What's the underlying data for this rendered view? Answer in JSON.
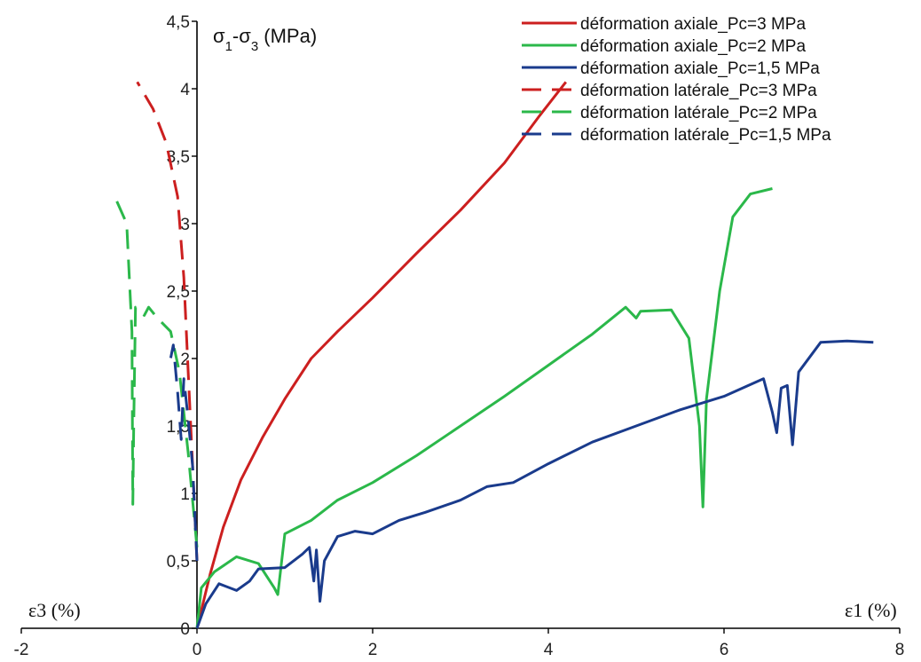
{
  "chart_data": {
    "type": "line",
    "title": "",
    "xlabel_left": "ε3 (%)",
    "xlabel_right": "ε1 (%)",
    "ylabel": "σ1-σ3 (MPa)",
    "xlim": [
      -2,
      8
    ],
    "ylim": [
      0,
      4.5
    ],
    "x_ticks": [
      "-2",
      "0",
      "2",
      "4",
      "6",
      "8"
    ],
    "y_ticks": [
      "0",
      "0,5",
      "1",
      "1,5",
      "2",
      "2,5",
      "3",
      "3,5",
      "4",
      "4,5"
    ],
    "grid": false,
    "legend_position": "top-right",
    "series": [
      {
        "name": "déformation axiale_Pc=3 MPa",
        "color": "#cc1f1f",
        "dash": "solid",
        "points": [
          [
            0,
            0
          ],
          [
            0.15,
            0.4
          ],
          [
            0.3,
            0.75
          ],
          [
            0.5,
            1.1
          ],
          [
            0.75,
            1.42
          ],
          [
            1.0,
            1.7
          ],
          [
            1.3,
            2.0
          ],
          [
            1.6,
            2.2
          ],
          [
            2.0,
            2.45
          ],
          [
            2.5,
            2.78
          ],
          [
            3.0,
            3.1
          ],
          [
            3.5,
            3.45
          ],
          [
            3.9,
            3.8
          ],
          [
            4.2,
            4.05
          ]
        ]
      },
      {
        "name": "déformation axiale_Pc=2 MPa",
        "color": "#2bb84a",
        "dash": "solid",
        "points": [
          [
            0,
            0
          ],
          [
            0.05,
            0.3
          ],
          [
            0.2,
            0.42
          ],
          [
            0.45,
            0.53
          ],
          [
            0.7,
            0.48
          ],
          [
            0.88,
            0.3
          ],
          [
            0.92,
            0.25
          ],
          [
            1.0,
            0.7
          ],
          [
            1.3,
            0.8
          ],
          [
            1.6,
            0.95
          ],
          [
            2.0,
            1.08
          ],
          [
            2.5,
            1.28
          ],
          [
            3.0,
            1.5
          ],
          [
            3.5,
            1.72
          ],
          [
            4.0,
            1.95
          ],
          [
            4.5,
            2.18
          ],
          [
            4.88,
            2.38
          ],
          [
            5.0,
            2.3
          ],
          [
            5.05,
            2.35
          ],
          [
            5.4,
            2.36
          ],
          [
            5.6,
            2.15
          ],
          [
            5.72,
            1.5
          ],
          [
            5.76,
            0.9
          ],
          [
            5.8,
            1.7
          ],
          [
            5.95,
            2.5
          ],
          [
            6.1,
            3.05
          ],
          [
            6.3,
            3.22
          ],
          [
            6.55,
            3.26
          ]
        ]
      },
      {
        "name": "déformation axiale_Pc=1,5 MPa",
        "color": "#1a3b8c",
        "dash": "solid",
        "points": [
          [
            0,
            0
          ],
          [
            0.1,
            0.18
          ],
          [
            0.25,
            0.33
          ],
          [
            0.45,
            0.28
          ],
          [
            0.6,
            0.35
          ],
          [
            0.7,
            0.44
          ],
          [
            1.0,
            0.45
          ],
          [
            1.2,
            0.55
          ],
          [
            1.28,
            0.6
          ],
          [
            1.33,
            0.35
          ],
          [
            1.36,
            0.58
          ],
          [
            1.4,
            0.2
          ],
          [
            1.45,
            0.5
          ],
          [
            1.6,
            0.68
          ],
          [
            1.8,
            0.72
          ],
          [
            2.0,
            0.7
          ],
          [
            2.3,
            0.8
          ],
          [
            2.6,
            0.86
          ],
          [
            3.0,
            0.95
          ],
          [
            3.3,
            1.05
          ],
          [
            3.6,
            1.08
          ],
          [
            4.0,
            1.22
          ],
          [
            4.5,
            1.38
          ],
          [
            5.0,
            1.5
          ],
          [
            5.5,
            1.62
          ],
          [
            6.0,
            1.72
          ],
          [
            6.45,
            1.85
          ],
          [
            6.55,
            1.6
          ],
          [
            6.6,
            1.45
          ],
          [
            6.65,
            1.78
          ],
          [
            6.72,
            1.8
          ],
          [
            6.78,
            1.36
          ],
          [
            6.85,
            1.9
          ],
          [
            7.1,
            2.12
          ],
          [
            7.4,
            2.13
          ],
          [
            7.7,
            2.12
          ]
        ]
      },
      {
        "name": "déformation latérale_Pc=3 MPa",
        "color": "#cc1f1f",
        "dash": "dashed",
        "points": [
          [
            0,
            0.5
          ],
          [
            -0.05,
            1.2
          ],
          [
            -0.1,
            1.9
          ],
          [
            -0.15,
            2.6
          ],
          [
            -0.22,
            3.2
          ],
          [
            -0.35,
            3.6
          ],
          [
            -0.5,
            3.85
          ],
          [
            -0.68,
            4.05
          ]
        ]
      },
      {
        "name": "déformation latérale_Pc=2 MPa",
        "color": "#2bb84a",
        "dash": "dashed",
        "points": [
          [
            0,
            0.6
          ],
          [
            -0.1,
            1.3
          ],
          [
            -0.2,
            1.9
          ],
          [
            -0.3,
            2.2
          ],
          [
            -0.45,
            2.3
          ],
          [
            -0.55,
            2.38
          ],
          [
            -0.6,
            2.32
          ],
          [
            -0.7,
            2.38
          ],
          [
            -0.72,
            1.5
          ],
          [
            -0.73,
            0.92
          ],
          [
            -0.74,
            2.2
          ],
          [
            -0.8,
            3.0
          ],
          [
            -0.95,
            3.22
          ]
        ]
      },
      {
        "name": "déformation latérale_Pc=1,5 MPa",
        "color": "#1a3b8c",
        "dash": "dashed",
        "points": [
          [
            0,
            0.5
          ],
          [
            -0.05,
            1.2
          ],
          [
            -0.1,
            1.55
          ],
          [
            -0.15,
            1.85
          ],
          [
            -0.18,
            1.4
          ],
          [
            -0.22,
            1.75
          ],
          [
            -0.27,
            2.1
          ],
          [
            -0.3,
            2.0
          ]
        ]
      }
    ]
  }
}
